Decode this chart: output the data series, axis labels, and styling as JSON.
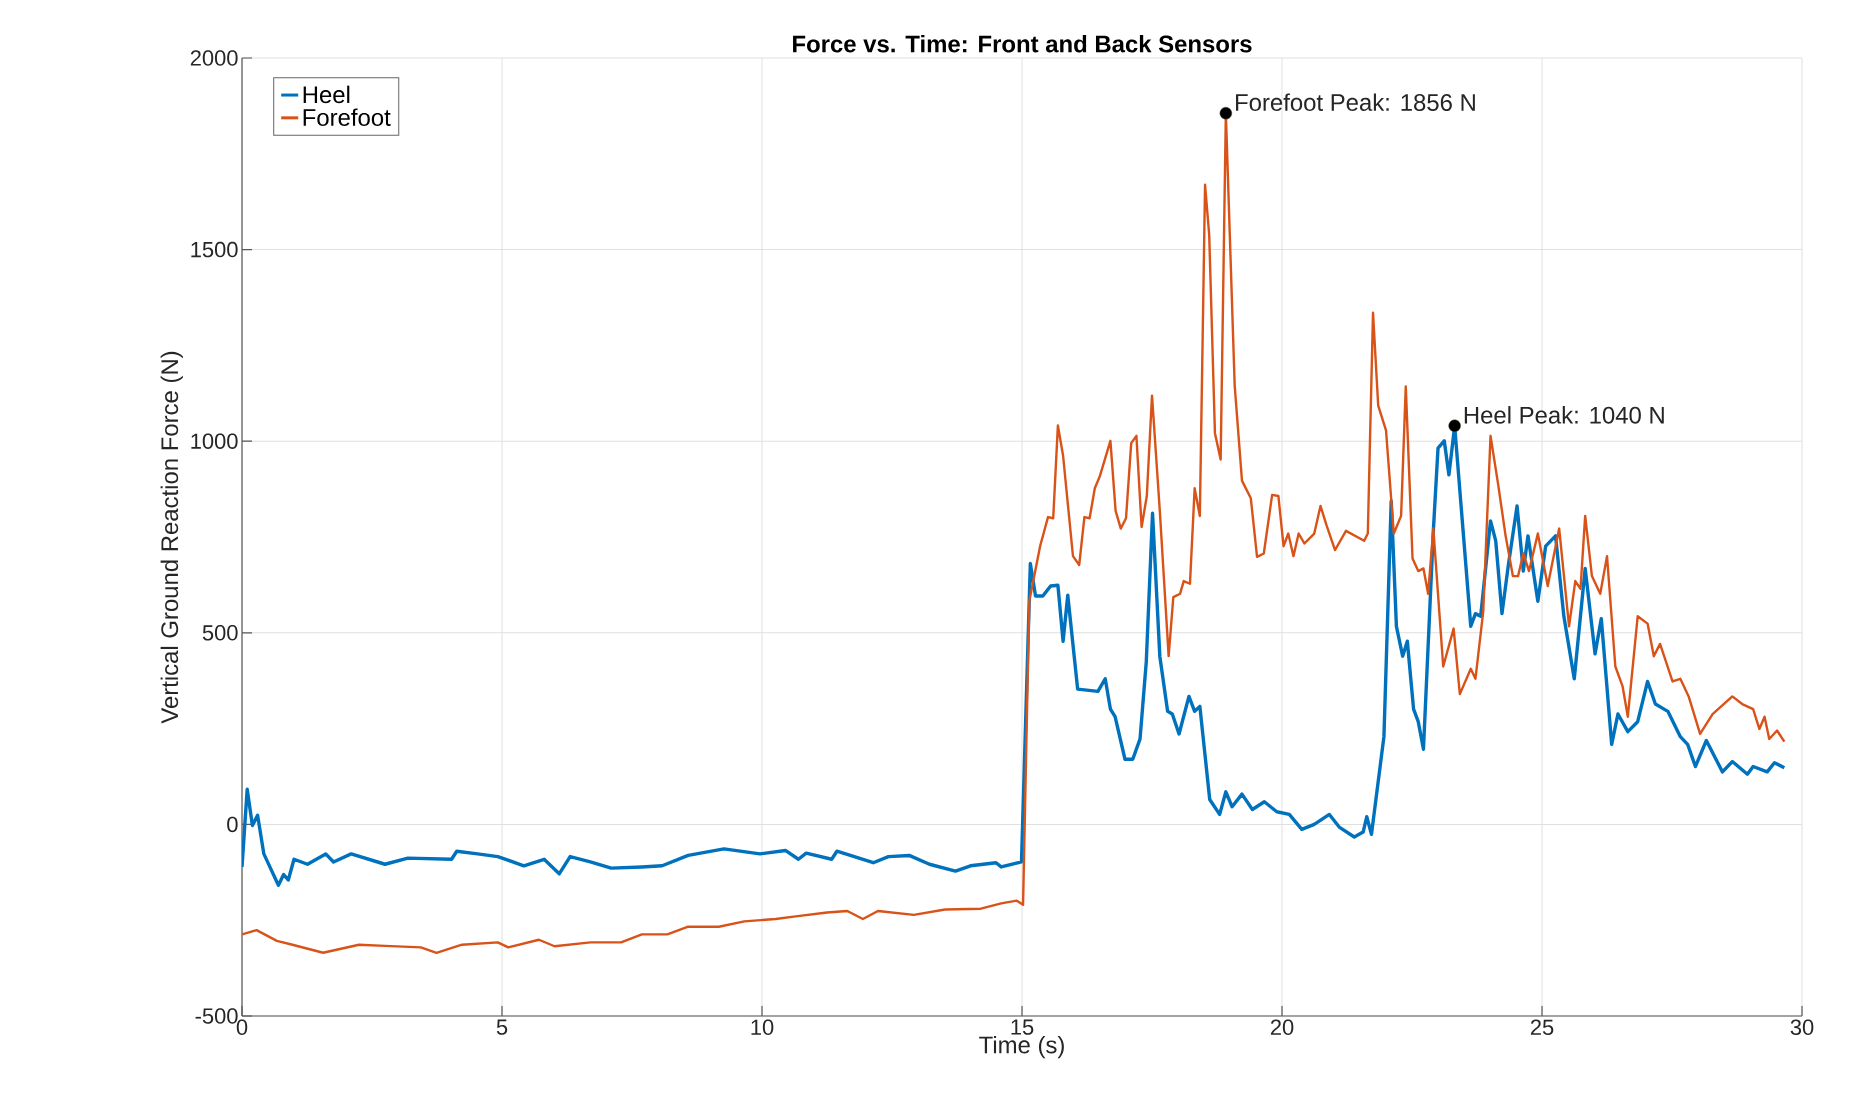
{
  "chart_data": {
    "type": "line",
    "title": "Force vs. Time: Front and Back Sensors",
    "xlabel": "Time (s)",
    "ylabel": "Vertical Ground Reaction Force (N)",
    "xlim": [
      0,
      30
    ],
    "ylim": [
      -500,
      2000
    ],
    "xticks": [
      0,
      5,
      10,
      15,
      20,
      25,
      30
    ],
    "yticks": [
      -500,
      0,
      500,
      1000,
      1500,
      2000
    ],
    "grid": true,
    "legend": "top left",
    "marker": "none",
    "annotations": [
      {
        "text": "Forefoot Peak: 1856 N",
        "x": 18.92,
        "y": 1856
      },
      {
        "text": "Heel Peak: 1040 N",
        "x": 23.32,
        "y": 1040
      }
    ],
    "series": [
      {
        "name": "Heel",
        "color": "#0072bd",
        "x": [
          0,
          0.1,
          0.2,
          0.3,
          0.42,
          0.7,
          0.8,
          0.89,
          1.0,
          1.26,
          1.61,
          1.76,
          2.1,
          2.75,
          3.19,
          4.03,
          4.13,
          4.53,
          4.92,
          5.42,
          5.81,
          6.1,
          6.31,
          6.7,
          7.1,
          7.69,
          8.08,
          8.58,
          9.27,
          9.96,
          10.45,
          10.7,
          10.85,
          11.34,
          11.44,
          12.14,
          12.43,
          12.83,
          13.22,
          13.72,
          14.01,
          14.5,
          14.6,
          14.99,
          15.16,
          15.26,
          15.4,
          15.55,
          15.69,
          15.79,
          15.88,
          16.07,
          16.46,
          16.6,
          16.7,
          16.79,
          16.98,
          17.13,
          17.27,
          17.39,
          17.51,
          17.65,
          17.8,
          17.89,
          18.02,
          18.21,
          18.32,
          18.42,
          18.61,
          18.8,
          18.92,
          19.04,
          19.23,
          19.43,
          19.66,
          19.9,
          20.14,
          20.38,
          20.62,
          20.91,
          21.1,
          21.39,
          21.56,
          21.63,
          21.72,
          21.96,
          22.1,
          22.2,
          22.32,
          22.41,
          22.53,
          22.62,
          22.72,
          22.91,
          23.0,
          23.12,
          23.21,
          23.32,
          23.63,
          23.72,
          23.82,
          24.01,
          24.11,
          24.23,
          24.35,
          24.52,
          24.64,
          24.73,
          24.92,
          25.07,
          25.26,
          25.42,
          25.62,
          25.83,
          26.02,
          26.14,
          26.34,
          26.46,
          26.65,
          26.84,
          27.03,
          27.18,
          27.42,
          27.66,
          27.8,
          27.95,
          28.16,
          28.47,
          28.66,
          28.95,
          29.06,
          29.33,
          29.47,
          29.66
        ],
        "values": [
          -111,
          92,
          -3,
          24,
          -77,
          -159,
          -131,
          -145,
          -91,
          -104,
          -77,
          -98,
          -77,
          -104,
          -88,
          -91,
          -70,
          -77,
          -84,
          -108,
          -91,
          -129,
          -84,
          -98,
          -114,
          -111,
          -108,
          -81,
          -64,
          -77,
          -68,
          -91,
          -75,
          -91,
          -70,
          -100,
          -84,
          -81,
          -104,
          -122,
          -108,
          -100,
          -111,
          -98,
          681,
          596,
          596,
          622,
          624,
          478,
          598,
          353,
          347,
          380,
          301,
          281,
          170,
          170,
          223,
          425,
          812,
          439,
          295,
          288,
          236,
          334,
          295,
          308,
          65,
          26,
          85,
          46,
          79,
          39,
          59,
          33,
          26,
          -13,
          0,
          26,
          -7,
          -33,
          -20,
          20,
          -26,
          229,
          844,
          517,
          439,
          478,
          301,
          268,
          196,
          766,
          982,
          1001,
          912,
          1040,
          517,
          550,
          543,
          792,
          740,
          550,
          674,
          831,
          661,
          753,
          582,
          726,
          753,
          543,
          380,
          668,
          445,
          537,
          209,
          288,
          242,
          268,
          373,
          314,
          295,
          229,
          209,
          151,
          219,
          137,
          164,
          131,
          151,
          137,
          161,
          148
        ]
      },
      {
        "name": "Forefoot",
        "color": "#d95319",
        "x": [
          0,
          0.28,
          0.67,
          0.97,
          1.56,
          2.25,
          2.75,
          3.44,
          3.74,
          4.23,
          4.92,
          5.12,
          5.71,
          6.01,
          6.7,
          7.29,
          7.69,
          8.18,
          8.58,
          9.17,
          9.66,
          10.26,
          10.65,
          11.25,
          11.64,
          11.94,
          12.23,
          12.92,
          13.52,
          14.21,
          14.6,
          14.9,
          15.02,
          15.14,
          15.35,
          15.5,
          15.6,
          15.69,
          15.79,
          15.98,
          16.1,
          16.2,
          16.3,
          16.4,
          16.5,
          16.7,
          16.8,
          16.9,
          17.0,
          17.1,
          17.2,
          17.3,
          17.4,
          17.5,
          17.65,
          17.82,
          17.91,
          18.04,
          18.11,
          18.23,
          18.32,
          18.42,
          18.52,
          18.6,
          18.71,
          18.82,
          18.92,
          19.09,
          19.23,
          19.4,
          19.52,
          19.65,
          19.81,
          19.93,
          20.03,
          20.12,
          20.22,
          20.32,
          20.43,
          20.62,
          20.74,
          20.86,
          21.02,
          21.23,
          21.58,
          21.65,
          21.75,
          21.85,
          22.0,
          22.15,
          22.29,
          22.38,
          22.51,
          22.62,
          22.72,
          22.81,
          22.91,
          23.1,
          23.3,
          23.42,
          23.63,
          23.72,
          23.87,
          24.01,
          24.16,
          24.3,
          24.44,
          24.54,
          24.64,
          24.75,
          24.92,
          25.11,
          25.33,
          25.52,
          25.64,
          25.74,
          25.83,
          25.96,
          26.12,
          26.25,
          26.41,
          26.55,
          26.65,
          26.84,
          27.03,
          27.15,
          27.27,
          27.51,
          27.66,
          27.82,
          28.04,
          28.28,
          28.66,
          28.85,
          29.06,
          29.18,
          29.28,
          29.37,
          29.52,
          29.66
        ],
        "values": [
          -287,
          -276,
          -304,
          -314,
          -335,
          -314,
          -317,
          -321,
          -335,
          -314,
          -308,
          -321,
          -301,
          -318,
          -308,
          -308,
          -287,
          -287,
          -267,
          -267,
          -253,
          -247,
          -240,
          -230,
          -226,
          -247,
          -226,
          -236,
          -222,
          -220,
          -206,
          -199,
          -210,
          583,
          727,
          802,
          799,
          1041,
          962,
          700,
          677,
          802,
          799,
          877,
          910,
          1001,
          818,
          772,
          799,
          995,
          1014,
          776,
          857,
          1119,
          818,
          439,
          593,
          602,
          635,
          628,
          877,
          805,
          1669,
          1538,
          1021,
          952,
          1856,
          1145,
          897,
          851,
          698,
          707,
          860,
          857,
          726,
          759,
          700,
          759,
          733,
          759,
          831,
          779,
          716,
          766,
          740,
          759,
          1335,
          1093,
          1028,
          759,
          805,
          1143,
          694,
          661,
          668,
          602,
          772,
          412,
          511,
          340,
          406,
          380,
          556,
          1014,
          884,
          753,
          648,
          648,
          707,
          661,
          759,
          622,
          772,
          517,
          635,
          615,
          805,
          648,
          602,
          700,
          412,
          360,
          281,
          543,
          524,
          439,
          471,
          373,
          380,
          334,
          236,
          288,
          334,
          314,
          301,
          249,
          281,
          223,
          245,
          216
        ]
      }
    ]
  }
}
